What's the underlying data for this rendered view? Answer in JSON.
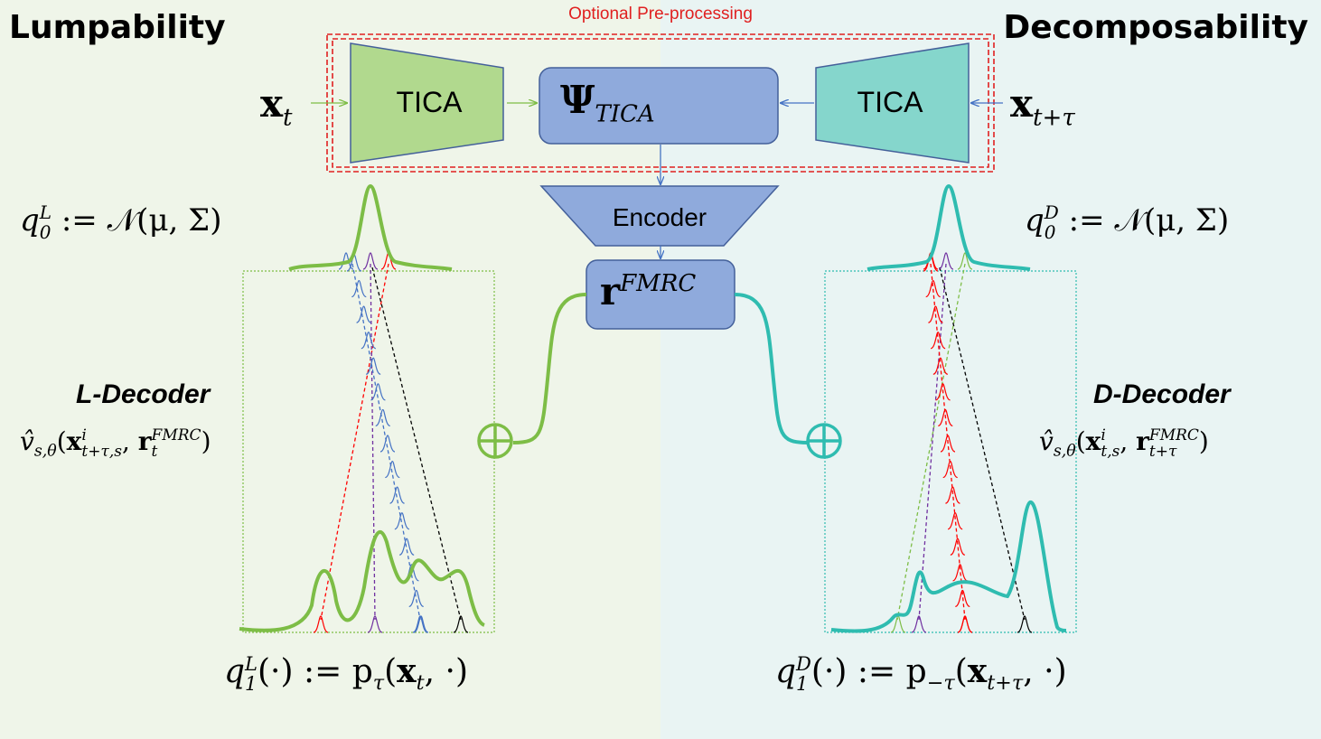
{
  "titles": {
    "left": "Lumpability",
    "right": "Decomposability"
  },
  "preprocessing_label": "Optional Pre-processing",
  "blocks": {
    "tica_left": "TICA",
    "tica_right": "TICA",
    "psi": "Ψ",
    "psi_sub": "TICA",
    "encoder": "Encoder",
    "r": "r",
    "r_sup": "FMRC"
  },
  "inputs": {
    "left_symbol": "x",
    "left_sub": "t",
    "right_symbol": "x",
    "right_sub": "t+τ"
  },
  "priors": {
    "left": {
      "q": "q",
      "sup": "L",
      "sub": "0",
      "rhs": " := 𝒩(μ, Σ)"
    },
    "right": {
      "q": "q",
      "sup": "D",
      "sub": "0",
      "rhs": " := 𝒩(μ, Σ)"
    }
  },
  "decoders": {
    "left": {
      "label": "L-Decoder",
      "v": "v̂",
      "v_sub": "s,θ",
      "open": "(",
      "x": "x",
      "x_sup": "i",
      "x_sub": "t+τ,s",
      "sep": ", ",
      "r": "r",
      "r_sup": "FMRC",
      "r_sub": "t",
      "close": ")"
    },
    "right": {
      "label": "D-Decoder",
      "v": "v̂",
      "v_sub": "s,θ",
      "open": "(",
      "x": "x",
      "x_sup": "i",
      "x_sub": "t,s",
      "sep": ", ",
      "r": "r",
      "r_sup": "FMRC",
      "r_sub": "t+τ",
      "close": ")"
    }
  },
  "targets": {
    "left": {
      "q": "q",
      "sup": "L",
      "sub": "1",
      "mid": "(·) := p",
      "p_sub": "τ",
      "open": "(",
      "x": "x",
      "x_sub": "t",
      "close": ", ·)"
    },
    "right": {
      "q": "q",
      "sup": "D",
      "sub": "1",
      "mid": "(·) := p",
      "p_sub": "−τ",
      "open": "(",
      "x": "x",
      "x_sub": "t+τ",
      "close": ", ·)"
    }
  },
  "colors": {
    "green": "#7dbd46",
    "teal": "#2fbcb0",
    "tica_left_fill": "#b1d98e",
    "tica_right_fill": "#85d6cc",
    "block_fill": "#8faadc",
    "block_stroke": "#44609a",
    "red": "#ff0000",
    "purple": "#7030a0",
    "blue": "#4472c4",
    "preproc_red": "#e02020"
  },
  "icons": {
    "sum_left": "circle-plus-icon",
    "sum_right": "circle-plus-icon"
  }
}
